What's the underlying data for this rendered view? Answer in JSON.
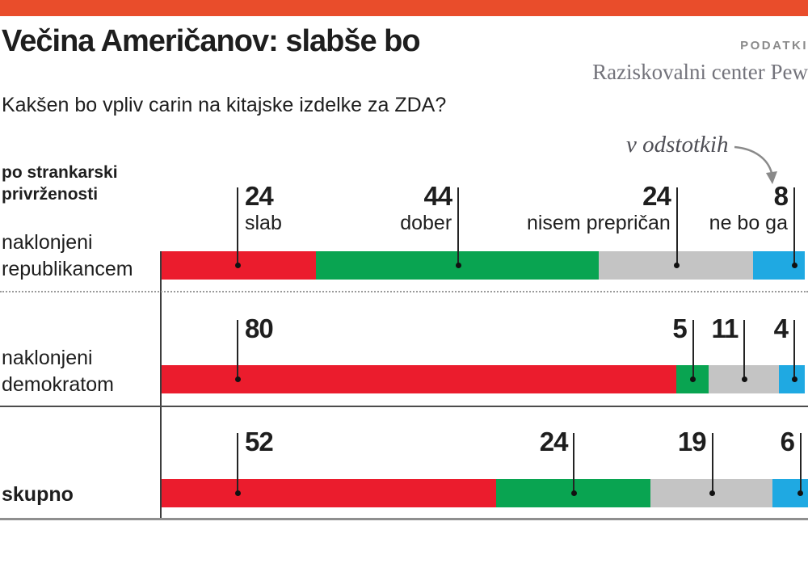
{
  "accent": {
    "top_bar_color": "#E94D2B",
    "text_dark": "#1e1e1e",
    "muted_gray": "#8a8a8a"
  },
  "header": {
    "title": "Večina Američanov: slabše bo",
    "kicker": "PODATKI",
    "source": "Raziskovalni center Pew",
    "question": "Kakšen bo vpliv carin na kitajske izdelke za ZDA?",
    "unit_note": "v odstotkih"
  },
  "chart_data": {
    "type": "bar",
    "orientation": "horizontal-stacked",
    "unit": "percent",
    "axis_range": [
      0,
      100
    ],
    "grid": false,
    "legend_position": "above-first-row",
    "group_label_lines": [
      "po strankarski",
      "privrženosti"
    ],
    "categories": [
      "slab",
      "dober",
      "nisem prepričan",
      "ne bo ga"
    ],
    "colors": [
      "#EB1C2D",
      "#09A451",
      "#C4C4C4",
      "#1FA9E2"
    ],
    "rows": [
      {
        "label_lines": [
          "naklonjeni",
          "republikancem"
        ],
        "bold": false,
        "values": [
          24,
          44,
          24,
          8
        ]
      },
      {
        "label_lines": [
          "naklonjeni",
          "demokratom"
        ],
        "bold": false,
        "values": [
          80,
          5,
          11,
          4
        ]
      },
      {
        "label_lines": [
          "skupno"
        ],
        "bold": true,
        "values": [
          52,
          24,
          19,
          6
        ]
      }
    ]
  }
}
